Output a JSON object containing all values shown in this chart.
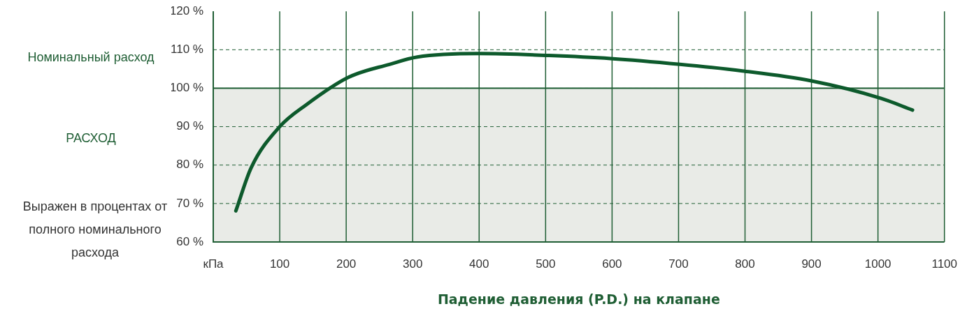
{
  "chart_data": {
    "type": "line",
    "xlabel": "Падение давления (P.D.) на клапане",
    "ylabel": "РАСХОД",
    "annotations": [
      "Выражен в процентах от полного номинального расхода"
    ],
    "series": [
      {
        "color": "#0d5a2c",
        "x": [
          34,
          57,
          100,
          140,
          203,
          265,
          307,
          400,
          505,
          598,
          702,
          796,
          900,
          1004,
          1052
        ],
        "values": [
          68.1,
          79.3,
          90,
          95.7,
          102.8,
          106.2,
          108.1,
          109,
          108.5,
          107.7,
          106.2,
          104.5,
          101.9,
          97.4,
          94.3
        ]
      }
    ],
    "xlim": [
      0,
      1100
    ],
    "xticks": [
      {
        "value": 0,
        "label": "кПа"
      },
      100,
      200,
      300,
      400,
      500,
      600,
      700,
      800,
      900,
      1000,
      1100
    ],
    "ylim": [
      60,
      120
    ],
    "yticks": [
      {
        "value": 60,
        "label": "60 %"
      },
      {
        "value": 70,
        "label": "70 %"
      },
      {
        "value": 80,
        "label": "80 %"
      },
      {
        "value": 90,
        "label": "90 %"
      },
      {
        "value": 100,
        "label": "100 %"
      },
      {
        "value": 110,
        "label": "110 %"
      },
      {
        "value": 120,
        "label": "120 %"
      }
    ],
    "ref_lines": [
      {
        "axis": "y",
        "value": 100,
        "label": "Номинальный расход",
        "color": "#1f5e34"
      }
    ],
    "bands": [
      {
        "axis": "y",
        "from": 60,
        "to": 100,
        "color": "#e9ebe7"
      }
    ],
    "grid": true,
    "legend": false,
    "marker": "none",
    "line_style": "solid"
  }
}
